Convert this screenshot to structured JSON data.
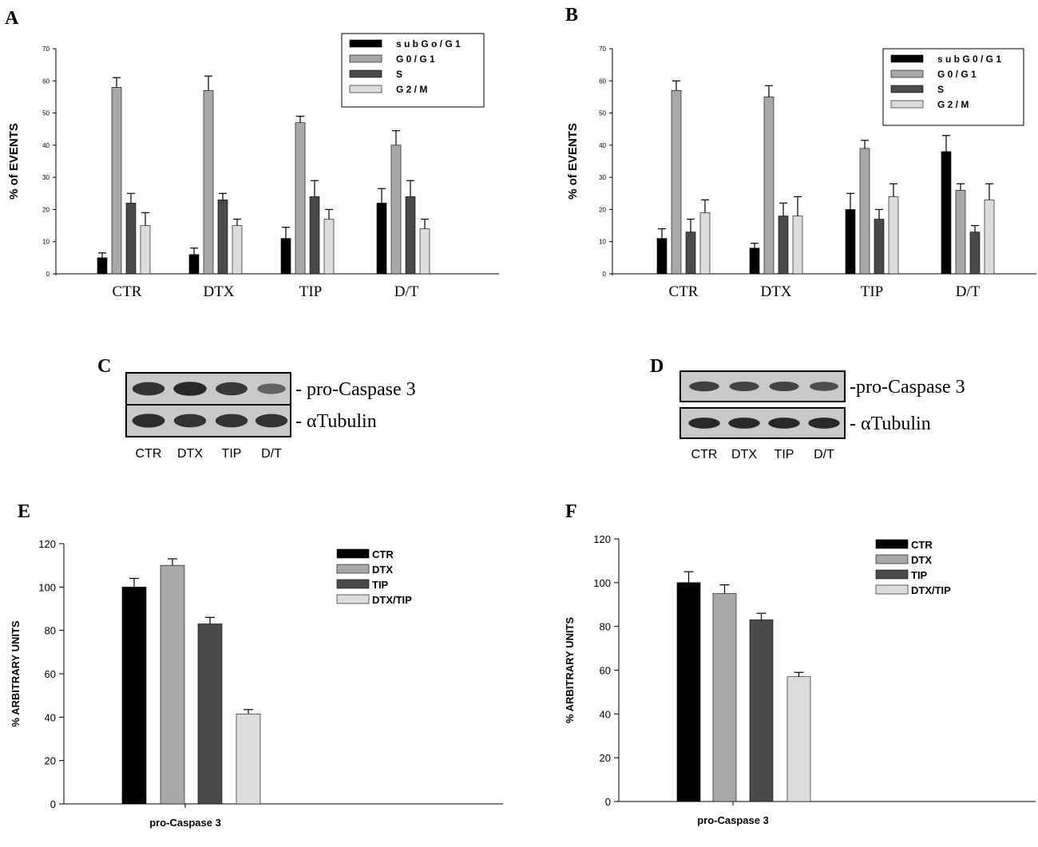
{
  "colors": {
    "black": "#000000",
    "light_gray": "#a8a8a8",
    "dark_gray": "#4a4a4a",
    "pale_gray": "#dcdcdc",
    "blot_background": "#c9c9c9",
    "band": "#1a1a1a"
  },
  "panel_letters": [
    "A",
    "B",
    "C",
    "D",
    "E",
    "F"
  ],
  "chart_data": [
    {
      "panel": "A",
      "type": "bar",
      "ylabel": "% of EVENTS",
      "ylim": [
        0,
        70
      ],
      "yticks": [
        0,
        10,
        20,
        30,
        40,
        50,
        60,
        70
      ],
      "categories": [
        "CTR",
        "DTX",
        "TIP",
        "D/T"
      ],
      "legend_position": "top-right",
      "series": [
        {
          "name": "s u b G o / G 1",
          "color": "#000000",
          "values": [
            5,
            6,
            11,
            22
          ],
          "errors": [
            1.5,
            2,
            3.5,
            4.5
          ]
        },
        {
          "name": "G 0 / G 1",
          "color": "#a8a8a8",
          "values": [
            58,
            57,
            47,
            40
          ],
          "errors": [
            3,
            4.5,
            2,
            4.5
          ]
        },
        {
          "name": "S",
          "color": "#4a4a4a",
          "values": [
            22,
            23,
            24,
            24
          ],
          "errors": [
            3,
            2,
            5,
            5
          ]
        },
        {
          "name": "G 2 / M",
          "color": "#dcdcdc",
          "values": [
            15,
            15,
            17,
            14
          ],
          "errors": [
            4,
            2,
            3,
            3
          ]
        }
      ]
    },
    {
      "panel": "B",
      "type": "bar",
      "ylabel": "% of EVENTS",
      "ylim": [
        0,
        70
      ],
      "yticks": [
        0,
        10,
        20,
        30,
        40,
        50,
        60,
        70
      ],
      "categories": [
        "CTR",
        "DTX",
        "TIP",
        "D/T"
      ],
      "legend_position": "top-right",
      "series": [
        {
          "name": "s u b G 0 / G 1",
          "color": "#000000",
          "values": [
            11,
            8,
            20,
            38
          ],
          "errors": [
            3,
            1.5,
            5,
            5
          ]
        },
        {
          "name": "G 0 / G 1",
          "color": "#a8a8a8",
          "values": [
            57,
            55,
            39,
            26
          ],
          "errors": [
            3,
            3.5,
            2.5,
            2
          ]
        },
        {
          "name": "S",
          "color": "#4a4a4a",
          "values": [
            13,
            18,
            17,
            13
          ],
          "errors": [
            4,
            4,
            3,
            2
          ]
        },
        {
          "name": "G 2 / M",
          "color": "#dcdcdc",
          "values": [
            19,
            18,
            24,
            23
          ],
          "errors": [
            4,
            6,
            4,
            5
          ]
        }
      ]
    },
    {
      "panel": "E",
      "type": "bar",
      "ylabel": "% ARBITRARY UNITS",
      "xlabel": "pro-Caspase 3",
      "ylim": [
        0,
        120
      ],
      "yticks": [
        0,
        20,
        40,
        60,
        80,
        100,
        120
      ],
      "legend_position": "top-right",
      "series": [
        {
          "name": "CTR",
          "color": "#000000",
          "value": 100,
          "error": 4
        },
        {
          "name": "DTX",
          "color": "#a8a8a8",
          "value": 110,
          "error": 3
        },
        {
          "name": "TIP",
          "color": "#4a4a4a",
          "value": 83,
          "error": 3
        },
        {
          "name": "DTX/TIP",
          "color": "#dcdcdc",
          "value": 41.5,
          "error": 2
        }
      ]
    },
    {
      "panel": "F",
      "type": "bar",
      "ylabel": "% ARBITRARY UNITS",
      "xlabel": "pro-Caspase 3",
      "ylim": [
        0,
        120
      ],
      "yticks": [
        0,
        20,
        40,
        60,
        80,
        100,
        120
      ],
      "legend_position": "top-right",
      "series": [
        {
          "name": "CTR",
          "color": "#000000",
          "value": 100,
          "error": 5
        },
        {
          "name": "DTX",
          "color": "#a8a8a8",
          "value": 95,
          "error": 4
        },
        {
          "name": "TIP",
          "color": "#4a4a4a",
          "value": 83,
          "error": 3
        },
        {
          "name": "DTX/TIP",
          "color": "#dcdcdc",
          "value": 57,
          "error": 2
        }
      ]
    }
  ],
  "blots": [
    {
      "panel": "C",
      "rows": [
        {
          "label": "- pro-Caspase 3",
          "intensities": [
            0.85,
            0.95,
            0.8,
            0.4
          ]
        },
        {
          "label": "- αTubulin",
          "intensities": [
            0.9,
            0.85,
            0.85,
            0.85
          ]
        }
      ],
      "lanes": [
        "CTR",
        "DTX",
        "TIP",
        "D/T"
      ]
    },
    {
      "panel": "D",
      "rows": [
        {
          "label": "-pro-Caspase 3",
          "intensities": [
            0.75,
            0.7,
            0.7,
            0.6
          ]
        },
        {
          "label": "- αTubulin",
          "intensities": [
            0.95,
            0.95,
            0.95,
            0.95
          ]
        }
      ],
      "lanes": [
        "CTR",
        "DTX",
        "TIP",
        "D/T"
      ]
    }
  ]
}
